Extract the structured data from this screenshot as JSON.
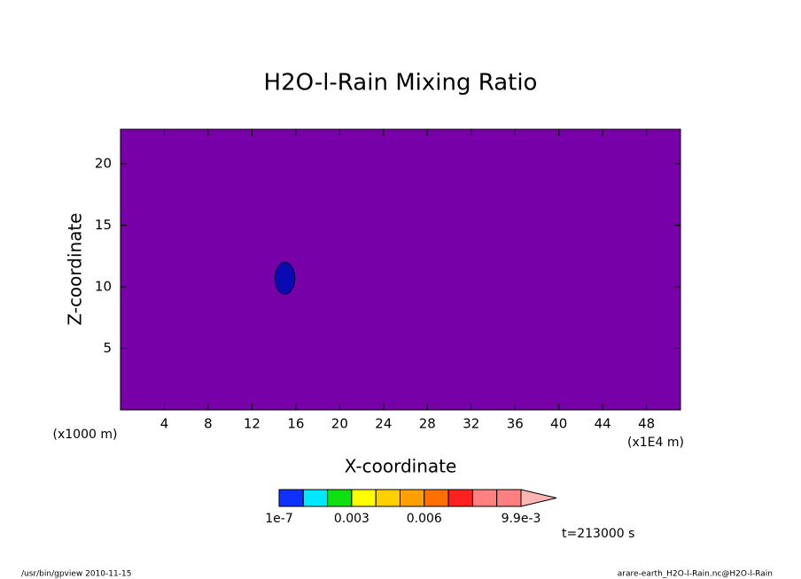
{
  "chart_data": {
    "type": "contour",
    "title": "H2O-l-Rain Mixing Ratio",
    "x_label": "X-coordinate",
    "y_label": "Z-coordinate",
    "x_unit": "(x1E4 m)",
    "y_unit": "(x1000 m)",
    "xlim": [
      0,
      51.1
    ],
    "ylim": [
      0,
      22.8
    ],
    "xticks": [
      4,
      8,
      12,
      16,
      20,
      24,
      28,
      32,
      36,
      40,
      44,
      48
    ],
    "yticks": [
      5,
      10,
      15,
      20
    ],
    "background_color": "#7800a8",
    "features": [
      {
        "x": 15,
        "y": 10.7,
        "rx": 0.9,
        "ry": 1.3,
        "color": "#0a0ab4"
      }
    ],
    "colorbar": {
      "colors": [
        "#1030ff",
        "#00e8ff",
        "#10e010",
        "#ffff00",
        "#ffd000",
        "#ffa000",
        "#ff7000",
        "#ff2020",
        "#ff8080",
        "#ff8080"
      ],
      "extend_color": "#ffb4b4",
      "levels": [
        "1e-7",
        null,
        null,
        "0.003",
        null,
        null,
        "0.006",
        null,
        null,
        null,
        "9.9e-3"
      ]
    },
    "time_label": "t=213000 s",
    "footer_left": "/usr/bin/gpview  2010-11-15",
    "footer_right": "arare-earth_H2O-l-Rain.nc@H2O-l-Rain"
  }
}
